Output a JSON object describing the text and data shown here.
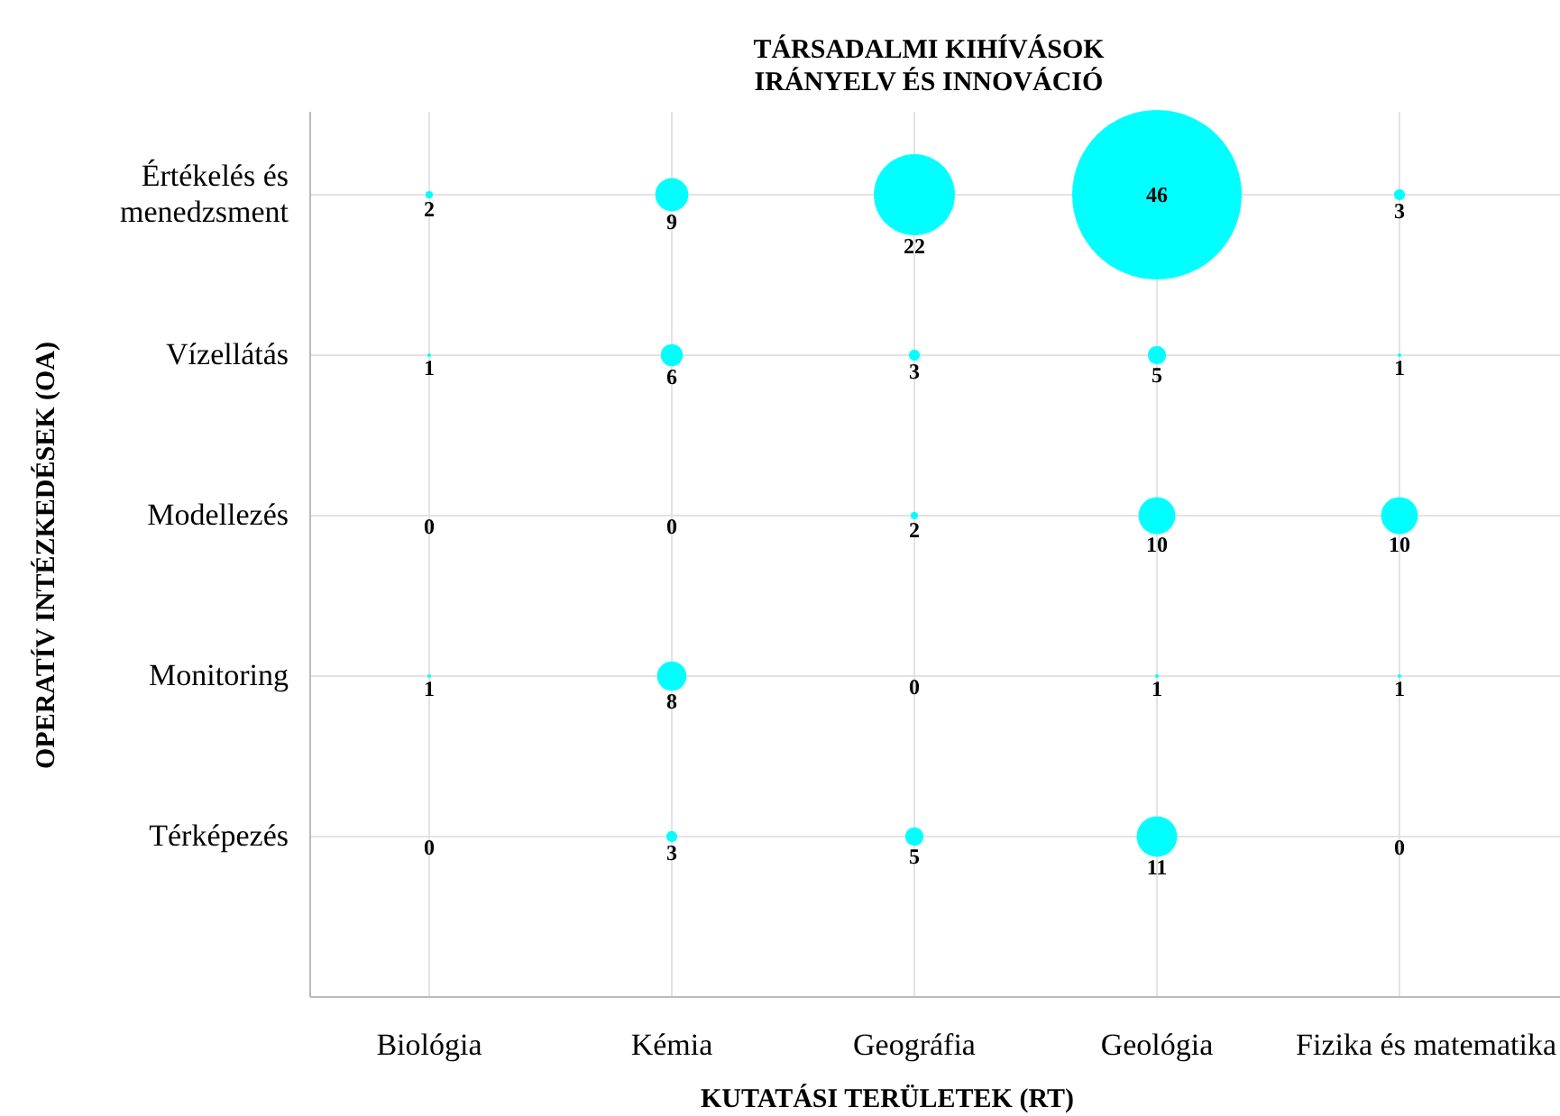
{
  "chart_data": {
    "type": "heatmap",
    "title": "TÁRSADALMI KIHÍVÁSOK\nIRÁNYELV ÉS INNOVÁCIÓ",
    "xlabel": "KUTATÁSI TERÜLETEK (RT)",
    "ylabel": "OPERATÍV INTÉZKEDÉSEK (OA)",
    "categories": [
      "Biológia",
      "Kémia",
      "Geográfia",
      "Geológia",
      "Fizika és matematika"
    ],
    "y_categories": [
      "Értékelés és menedzsment",
      "Vízellátás",
      "Modellezés",
      "Monitoring",
      "Térképezés"
    ],
    "cells": [
      [
        2,
        9,
        22,
        46,
        3
      ],
      [
        1,
        6,
        3,
        5,
        1
      ],
      [
        0,
        0,
        2,
        10,
        10
      ],
      [
        1,
        8,
        0,
        1,
        1
      ],
      [
        0,
        3,
        5,
        11,
        0
      ]
    ],
    "color": "#00ffff",
    "data_labels": true,
    "grid": true
  }
}
